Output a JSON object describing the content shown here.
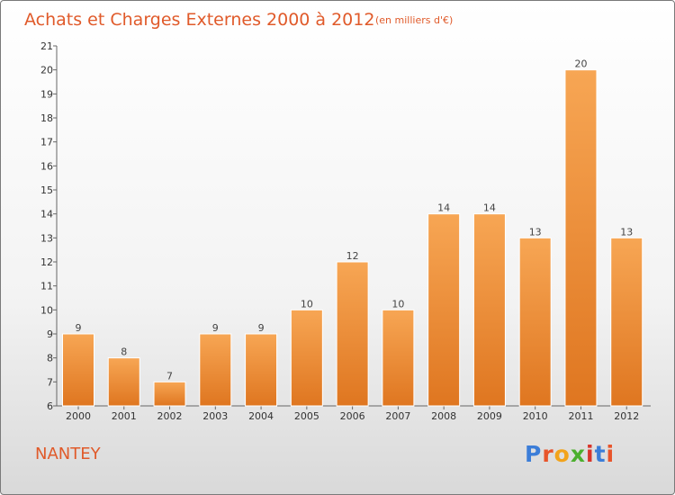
{
  "header": {
    "title": "Achats et Charges Externes 2000 à 2012",
    "subtitle": "(en milliers d'€)"
  },
  "footer": {
    "place": "NANTEY",
    "logo": "Proxiti"
  },
  "colors": {
    "title": "#e05a2a",
    "bar_light": "#f7a654",
    "bar_dark": "#e07a20"
  },
  "chart_data": {
    "type": "bar",
    "title": "Achats et Charges Externes 2000 à 2012",
    "subtitle": "(en milliers d'€)",
    "categories": [
      "2000",
      "2001",
      "2002",
      "2003",
      "2004",
      "2005",
      "2006",
      "2007",
      "2008",
      "2009",
      "2010",
      "2011",
      "2012"
    ],
    "values": [
      9,
      8,
      7,
      9,
      9,
      10,
      12,
      10,
      14,
      14,
      13,
      20,
      13
    ],
    "ylim": [
      6,
      21
    ],
    "yticks": [
      6,
      7,
      8,
      9,
      10,
      11,
      12,
      13,
      14,
      15,
      16,
      17,
      18,
      19,
      20,
      21
    ],
    "grid": false,
    "legend": "none"
  }
}
